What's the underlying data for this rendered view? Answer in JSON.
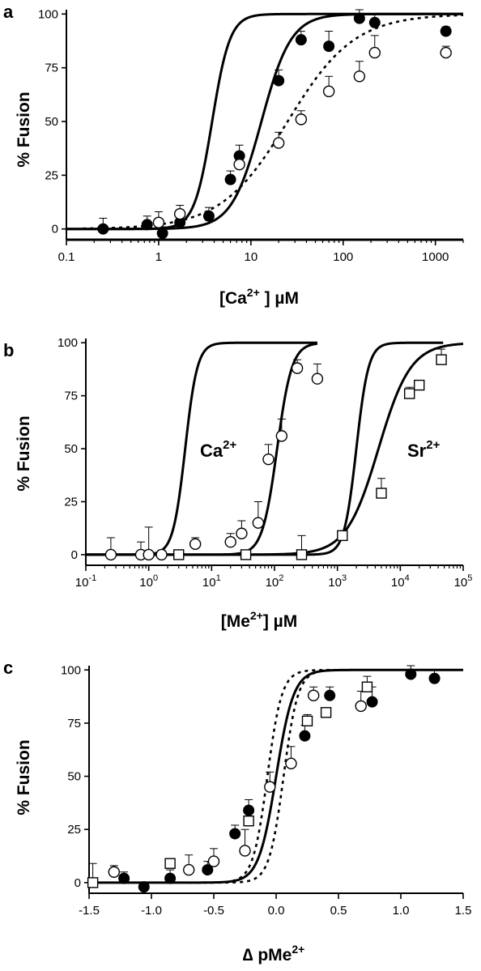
{
  "figure": {
    "panels": [
      {
        "letter": "a",
        "ylabel": "% Fusion",
        "xlabel_main": "[Ca",
        "xlabel_sup": "2+",
        "xlabel_tail": " ] µM"
      },
      {
        "letter": "b",
        "ylabel": "% Fusion",
        "xlabel_main": "[Me",
        "xlabel_sup": "2+",
        "xlabel_tail": "] µM"
      },
      {
        "letter": "c",
        "ylabel": "% Fusion",
        "xlabel_main": "∆ pMe",
        "xlabel_sup": "2+",
        "xlabel_tail": ""
      }
    ],
    "annotations_b": [
      {
        "main": "Ca",
        "sup": "2+"
      },
      {
        "main": "Sr",
        "sup": "2+"
      }
    ]
  },
  "chart_data": [
    {
      "type": "scatter",
      "panel": "a",
      "xscale": "log",
      "xlim": [
        0.1,
        2000
      ],
      "ylim": [
        -5,
        102
      ],
      "xticks": [
        "0.1",
        "1",
        "10",
        "100",
        "1000"
      ],
      "xtick_values": [
        0.1,
        1,
        10,
        100,
        1000
      ],
      "yticks": [
        "0",
        "25",
        "50",
        "75",
        "100"
      ],
      "ytick_values": [
        0,
        25,
        50,
        75,
        100
      ],
      "series": [
        {
          "marker": "filled-circle",
          "points": [
            {
              "x": 0.25,
              "y": 0,
              "err": 5
            },
            {
              "x": 0.75,
              "y": 2,
              "err": 4
            },
            {
              "x": 1.1,
              "y": -2,
              "err": 3
            },
            {
              "x": 1.7,
              "y": 3,
              "err": 5
            },
            {
              "x": 3.5,
              "y": 6,
              "err": 4
            },
            {
              "x": 6,
              "y": 23,
              "err": 4
            },
            {
              "x": 7.5,
              "y": 34,
              "err": 5
            },
            {
              "x": 20,
              "y": 69,
              "err": 5
            },
            {
              "x": 35,
              "y": 88,
              "err": 4
            },
            {
              "x": 70,
              "y": 85,
              "err": 7
            },
            {
              "x": 150,
              "y": 98,
              "err": 4
            },
            {
              "x": 220,
              "y": 96,
              "err": 4
            },
            {
              "x": 1300,
              "y": 92,
              "err": 2
            }
          ]
        },
        {
          "marker": "open-circle",
          "points": [
            {
              "x": 1.0,
              "y": 3,
              "err": 5
            },
            {
              "x": 1.7,
              "y": 7,
              "err": 4
            },
            {
              "x": 7.5,
              "y": 30,
              "err": 5
            },
            {
              "x": 20,
              "y": 40,
              "err": 5
            },
            {
              "x": 35,
              "y": 51,
              "err": 4
            },
            {
              "x": 70,
              "y": 64,
              "err": 7
            },
            {
              "x": 150,
              "y": 71,
              "err": 7
            },
            {
              "x": 220,
              "y": 82,
              "err": 8
            },
            {
              "x": 1300,
              "y": 82,
              "err": 3
            }
          ]
        }
      ],
      "curves": [
        {
          "style": "solid",
          "k": 3.8,
          "n": 4.5,
          "bottom": 0,
          "top": 100,
          "xmin": 0.1,
          "xmax": 2000
        },
        {
          "style": "solid",
          "k": 13,
          "n": 2.7,
          "bottom": 0,
          "top": 100,
          "xmin": 0.1,
          "xmax": 2000
        },
        {
          "style": "dotted",
          "k": 25,
          "n": 1.2,
          "bottom": 0,
          "top": 100,
          "xmin": 0.15,
          "xmax": 2000
        },
        {
          "style": "solid",
          "k": 1,
          "n": 1,
          "bottom": -5,
          "top": -5,
          "xmin": 0.1,
          "xmax": 2000
        }
      ]
    },
    {
      "type": "scatter",
      "panel": "b",
      "xscale": "log",
      "xlim": [
        0.1,
        100000
      ],
      "ylim": [
        -5,
        102
      ],
      "xticks": [
        "10^-1",
        "10^0",
        "10^1",
        "10^2",
        "10^3",
        "10^4",
        "10^5"
      ],
      "xtick_values": [
        0.1,
        1,
        10,
        100,
        1000,
        10000,
        100000
      ],
      "yticks": [
        "0",
        "25",
        "50",
        "75",
        "100"
      ],
      "ytick_values": [
        0,
        25,
        50,
        75,
        100
      ],
      "series": [
        {
          "marker": "open-circle",
          "points": [
            {
              "x": 0.25,
              "y": 0,
              "err": 8
            },
            {
              "x": 0.75,
              "y": 0,
              "err": 6
            },
            {
              "x": 1,
              "y": 0,
              "err": 13
            },
            {
              "x": 1.6,
              "y": 0,
              "err": 2
            },
            {
              "x": 5.5,
              "y": 5,
              "err": 3
            },
            {
              "x": 20,
              "y": 6,
              "err": 4
            },
            {
              "x": 30,
              "y": 10,
              "err": 6
            },
            {
              "x": 55,
              "y": 15,
              "err": 10
            },
            {
              "x": 80,
              "y": 45,
              "err": 7
            },
            {
              "x": 130,
              "y": 56,
              "err": 8
            },
            {
              "x": 230,
              "y": 88,
              "err": 4
            },
            {
              "x": 480,
              "y": 83,
              "err": 7
            }
          ]
        },
        {
          "marker": "open-square",
          "points": [
            {
              "x": 3,
              "y": 0,
              "err": 2
            },
            {
              "x": 35,
              "y": 0,
              "err": 2
            },
            {
              "x": 270,
              "y": 0,
              "err": 9
            },
            {
              "x": 1200,
              "y": 9,
              "err": 2
            },
            {
              "x": 5000,
              "y": 29,
              "err": 7
            },
            {
              "x": 14000,
              "y": 76,
              "err": 3
            },
            {
              "x": 20000,
              "y": 80,
              "err": 2
            },
            {
              "x": 45000,
              "y": 92,
              "err": 5
            }
          ]
        }
      ],
      "curves": [
        {
          "style": "solid",
          "k": 3.8,
          "n": 4.5,
          "bottom": 0,
          "top": 100,
          "xmin": 0.1,
          "xmax": 480
        },
        {
          "style": "solid",
          "k": 110,
          "n": 3.7,
          "bottom": 0,
          "top": 100,
          "xmin": 0.1,
          "xmax": 480
        },
        {
          "style": "solid",
          "k": 2000,
          "n": 4.5,
          "bottom": 0,
          "top": 100,
          "xmin": 0.1,
          "xmax": 48000
        },
        {
          "style": "solid",
          "k": 4500,
          "n": 1.7,
          "bottom": 0,
          "top": 100,
          "xmin": 0.1,
          "xmax": 100000
        }
      ]
    },
    {
      "type": "scatter",
      "panel": "c",
      "xscale": "linear",
      "xlim": [
        -1.5,
        1.5
      ],
      "ylim": [
        -5,
        102
      ],
      "xticks": [
        "-1.5",
        "-1.0",
        "-0.5",
        "0.0",
        "0.5",
        "1.0",
        "1.5"
      ],
      "xtick_values": [
        -1.5,
        -1.0,
        -0.5,
        0.0,
        0.5,
        1.0,
        1.5
      ],
      "yticks": [
        "0",
        "25",
        "50",
        "75",
        "100"
      ],
      "ytick_values": [
        0,
        25,
        50,
        75,
        100
      ],
      "series": [
        {
          "marker": "filled-circle",
          "points": [
            {
              "x": -1.22,
              "y": 2,
              "err": 3
            },
            {
              "x": -1.06,
              "y": -2,
              "err": 2
            },
            {
              "x": -0.85,
              "y": 2,
              "err": 4
            },
            {
              "x": -0.55,
              "y": 6,
              "err": 4
            },
            {
              "x": -0.33,
              "y": 23,
              "err": 4
            },
            {
              "x": -0.22,
              "y": 34,
              "err": 5
            },
            {
              "x": 0.23,
              "y": 69,
              "err": 5
            },
            {
              "x": 0.43,
              "y": 88,
              "err": 4
            },
            {
              "x": 0.77,
              "y": 85,
              "err": 7
            },
            {
              "x": 1.08,
              "y": 98,
              "err": 4
            },
            {
              "x": 1.27,
              "y": 96,
              "err": 4
            }
          ]
        },
        {
          "marker": "open-circle",
          "points": [
            {
              "x": -1.3,
              "y": 5,
              "err": 3
            },
            {
              "x": -0.7,
              "y": 6,
              "err": 7
            },
            {
              "x": -0.5,
              "y": 10,
              "err": 6
            },
            {
              "x": -0.25,
              "y": 15,
              "err": 10
            },
            {
              "x": -0.05,
              "y": 45,
              "err": 7
            },
            {
              "x": 0.12,
              "y": 56,
              "err": 8
            },
            {
              "x": 0.3,
              "y": 88,
              "err": 4
            },
            {
              "x": 0.68,
              "y": 83,
              "err": 7
            }
          ]
        },
        {
          "marker": "open-square",
          "points": [
            {
              "x": -1.47,
              "y": 0,
              "err": 9
            },
            {
              "x": -0.85,
              "y": 9,
              "err": 2
            },
            {
              "x": -0.22,
              "y": 29,
              "err": 4
            },
            {
              "x": 0.25,
              "y": 76,
              "err": 3
            },
            {
              "x": 0.4,
              "y": 80,
              "err": 2
            },
            {
              "x": 0.73,
              "y": 92,
              "err": 5
            }
          ]
        }
      ],
      "curves": [
        {
          "style": "solid",
          "k": 0.0,
          "n": 6.2,
          "bottom": 0,
          "top": 100,
          "xmin": -1.5,
          "xmax": 1.5,
          "kind": "p"
        },
        {
          "style": "dotted",
          "k": -0.07,
          "n": 7.5,
          "bottom": 0,
          "top": 100,
          "xmin": -0.7,
          "xmax": 1.5,
          "kind": "p"
        },
        {
          "style": "dotted",
          "k": 0.06,
          "n": 7.5,
          "bottom": 0,
          "top": 100,
          "xmin": -0.7,
          "xmax": 1.5,
          "kind": "p"
        }
      ]
    }
  ]
}
